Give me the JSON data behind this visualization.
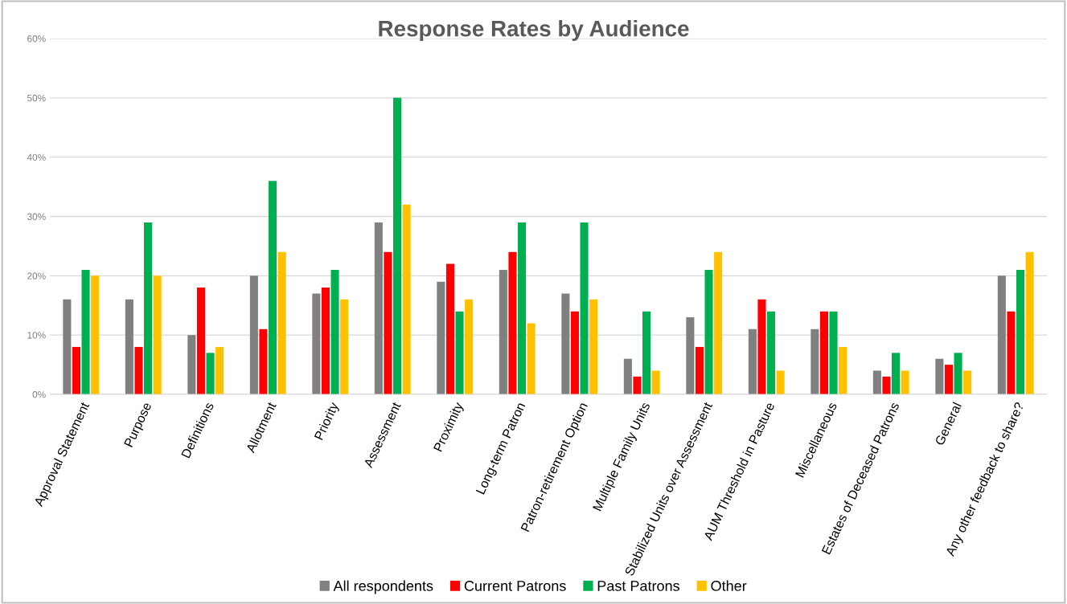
{
  "chart_data": {
    "type": "bar",
    "title": "Response Rates by Audience",
    "categories": [
      "Approval Statement",
      "Purpose",
      "Definitions",
      "Allotment",
      "Priority",
      "Assessment",
      "Proximity",
      "Long-term Patron",
      "Patron-retirement Option",
      "Multiple Family Units",
      "Stabilized Units over Assessment",
      "AUM Threshold in Pasture",
      "Miscellaneous",
      "Estates of Deceased Patrons",
      "General",
      "Any other feedback to share?"
    ],
    "series": [
      {
        "name": "All respondents",
        "color": "#808080",
        "values": [
          16,
          16,
          10,
          20,
          17,
          29,
          19,
          21,
          17,
          6,
          13,
          11,
          11,
          4,
          6,
          20
        ]
      },
      {
        "name": "Current Patrons",
        "color": "#ff0000",
        "values": [
          8,
          8,
          18,
          11,
          18,
          24,
          22,
          24,
          14,
          3,
          8,
          16,
          14,
          3,
          5,
          14
        ]
      },
      {
        "name": "Past Patrons",
        "color": "#00b050",
        "values": [
          21,
          29,
          7,
          36,
          21,
          50,
          14,
          29,
          29,
          14,
          21,
          14,
          14,
          7,
          7,
          21
        ]
      },
      {
        "name": "Other",
        "color": "#ffc000",
        "values": [
          20,
          20,
          8,
          24,
          16,
          32,
          16,
          12,
          16,
          4,
          24,
          4,
          8,
          4,
          4,
          24
        ]
      }
    ],
    "ylim": [
      0,
      60
    ],
    "yticks": [
      {
        "value": 0,
        "label": "0%"
      },
      {
        "value": 10,
        "label": "10%"
      },
      {
        "value": 20,
        "label": "20%"
      },
      {
        "value": 30,
        "label": "30%"
      },
      {
        "value": 40,
        "label": "40%"
      },
      {
        "value": 50,
        "label": "50%"
      },
      {
        "value": 60,
        "label": "60%"
      }
    ],
    "grid": "y",
    "legend": "bottom"
  }
}
